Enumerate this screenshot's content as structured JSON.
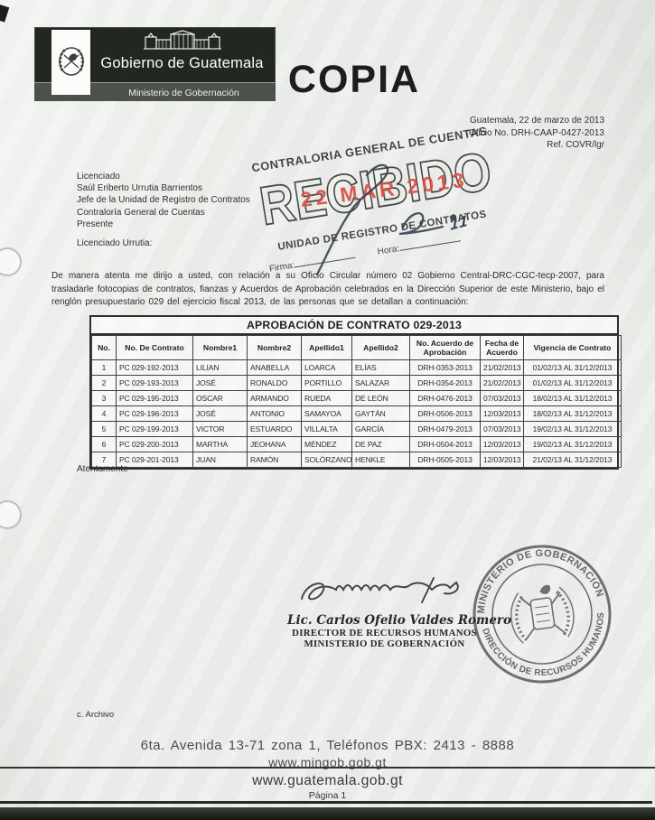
{
  "banner": {
    "gov": "Gobierno de Guatemala",
    "ministry": "Ministerio de Gobernación"
  },
  "copy_mark": "COPIA",
  "dateblock": {
    "place_date": "Guatemala, 22 de marzo de 2013",
    "oficio": "Oficio No. DRH-CAAP-0427-2013",
    "ref": "Ref. COVR/lgr"
  },
  "recipient": {
    "line1": "Licenciado",
    "line2": "Saúl Eriberto Urrutia Barrientos",
    "line3": "Jefe de la Unidad de Registro de Contratos",
    "line4": "Contraloría General de Cuentas",
    "line5": "Presente",
    "salutation": "Licenciado Urrutia:"
  },
  "stamp": {
    "org": "CONTRALORIA GENERAL DE CUENTAS",
    "word": "RECIBIDO",
    "date": "22 MAR 2013",
    "unit": "UNIDAD DE REGISTRO DE CONTRATOS",
    "firma_label": "Firma:",
    "hora_label": "Hora:",
    "handwritten_time": "11"
  },
  "body": "De manera atenta me dirijo a usted, con relación a su Oficio Circular número 02 Gobierno Central-DRC-CGC-tecp-2007, para trasladarle fotocopias de contratos, fianzas y Acuerdos de Aprobación celebrados en la Dirección Superior de este Ministerio, bajo el renglón presupuestario 029 del ejercicio fiscal 2013, de las personas que se detallan a continuación:",
  "table": {
    "title": "APROBACIÓN DE CONTRATO 029-2013",
    "columns": [
      "No.",
      "No. De Contrato",
      "Nombre1",
      "Nombre2",
      "Apellido1",
      "Apellido2",
      "No. Acuerdo de Aprobación",
      "Fecha de Acuerdo",
      "Vigencia de Contrato"
    ],
    "rows": [
      [
        "1",
        "PC 029-192-2013",
        "LILIAN",
        "ANABELLA",
        "LOARCA",
        "ELÍAS",
        "DRH-0353-2013",
        "21/02/2013",
        "01/02/13 AL 31/12/2013"
      ],
      [
        "2",
        "PC 029-193-2013",
        "JOSÉ",
        "RONALDO",
        "PORTILLO",
        "SALAZAR",
        "DRH-0354-2013",
        "21/02/2013",
        "01/02/13 AL 31/12/2013"
      ],
      [
        "3",
        "PC 029-195-2013",
        "OSCAR",
        "ARMANDO",
        "RUEDA",
        "DE LEÓN",
        "DRH-0476-2013",
        "07/03/2013",
        "18/02/13 AL 31/12/2013"
      ],
      [
        "4",
        "PC 029-196-2013",
        "JOSÉ",
        "ANTONIO",
        "SAMAYOA",
        "GAYTÁN",
        "DRH-0506-2013",
        "12/03/2013",
        "18/02/13 AL 31/12/2013"
      ],
      [
        "5",
        "PC 029-199-2013",
        "VICTOR",
        "ESTUARDO",
        "VILLALTA",
        "GARCÍA",
        "DRH-0479-2013",
        "07/03/2013",
        "19/02/13 AL 31/12/2013"
      ],
      [
        "6",
        "PC 029-200-2013",
        "MARTHA",
        "JEOHANA",
        "MÉNDEZ",
        "DE PAZ",
        "DRH-0504-2013",
        "12/03/2013",
        "19/02/13 AL 31/12/2013"
      ],
      [
        "7",
        "PC 029-201-2013",
        "JUAN",
        "RAMÓN",
        "SOLÓRZANO",
        "HENKLE",
        "DRH-0505-2013",
        "12/03/2013",
        "21/02/13 AL 31/12/2013"
      ]
    ]
  },
  "closing": "Atentamente",
  "signature": {
    "name": "Lic. Carlos Ofelio Valdes Romero",
    "role": "DIRECTOR DE RECURSOS HUMANOS",
    "org": "MINISTERIO DE GOBERNACIÓN"
  },
  "seal": {
    "top": "MINISTERIO DE GOBERNACIÓN",
    "bottom": "DIRECCIÓN DE RECURSOS HUMANOS"
  },
  "cc": "c. Archivo",
  "footer": {
    "address": "6ta. Avenida 13-71 zona 1, Teléfonos PBX: 2413 - 8888",
    "site_ministry": "www.mingob.gob.gt",
    "site_gov": "www.guatemala.gob.gt",
    "page": "Página 1"
  },
  "colors": {
    "banner_dark": "#20281f",
    "banner_strip": "#4a524b",
    "stamp_red": "#d8463a",
    "ink": "#2f2f2f",
    "pen_ink": "#3a4050",
    "seal_ink": "#5a5a5a"
  }
}
